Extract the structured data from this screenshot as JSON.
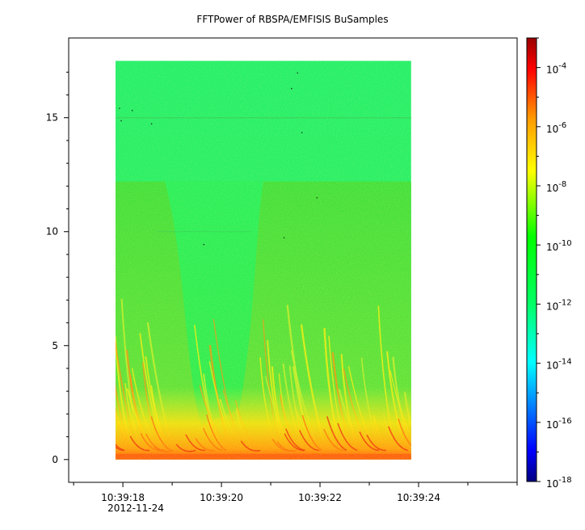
{
  "chart_data": {
    "type": "heatmap",
    "title": "FFTPower of RBSPA/EMFISIS  BuSamples",
    "xlabel": "",
    "ylabel": "",
    "x_ticks": [
      "10:39:18",
      "10:39:20",
      "10:39:22",
      "10:39:24"
    ],
    "x_tick_values_s": [
      18,
      20,
      22,
      24
    ],
    "x_date_label": "2012-11-24",
    "xlim_s": [
      16.9,
      26.0
    ],
    "y_ticks": [
      0,
      5,
      10,
      15
    ],
    "ylim": [
      -1.0,
      18.5
    ],
    "data_x_range_s": [
      17.85,
      23.85
    ],
    "data_y_range": [
      0,
      17.5
    ],
    "colorbar": {
      "scale": "log",
      "range": [
        1e-18,
        0.001
      ],
      "tick_labels": [
        {
          "base": "10",
          "exp": "-4",
          "value": -4
        },
        {
          "base": "10",
          "exp": "-6",
          "value": -6
        },
        {
          "base": "10",
          "exp": "-8",
          "value": -8
        },
        {
          "base": "10",
          "exp": "-10",
          "value": -10
        },
        {
          "base": "10",
          "exp": "-12",
          "value": -12
        },
        {
          "base": "10",
          "exp": "-14",
          "value": -14
        },
        {
          "base": "10",
          "exp": "-16",
          "value": -16
        },
        {
          "base": "10",
          "exp": "-18",
          "value": -18
        }
      ],
      "colors": [
        "#000080",
        "#0000ff",
        "#00ffff",
        "#00ff00",
        "#ffff00",
        "#ff8000",
        "#ff0000",
        "#800000"
      ]
    },
    "grid": false
  }
}
